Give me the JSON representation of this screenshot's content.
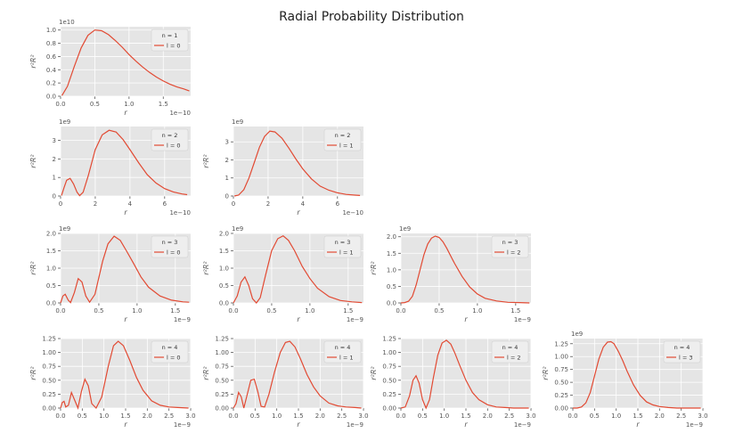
{
  "figure": {
    "title": "Radial Probability Distribution"
  },
  "colors": {
    "axes_bg": "#e5e5e5",
    "grid": "#ffffff",
    "line": "#e24a33",
    "text": "#555555",
    "legend_bg": "#eeeeee"
  },
  "chart_data": [
    {
      "type": "line",
      "n": 1,
      "l": 0,
      "legend": [
        "n = 1",
        "l = 0"
      ],
      "xlabel": "r",
      "ylabel": "r²R²",
      "x_offset_text": "1e−10",
      "y_offset_text": "1e10",
      "xlim": [
        0,
        1.9
      ],
      "ylim": [
        0,
        1.05
      ],
      "xticks": [
        0,
        0.5,
        1.0,
        1.5
      ],
      "xtick_labels": [
        "0.0",
        "0.5",
        "1.0",
        "1.5"
      ],
      "yticks": [
        0,
        0.2,
        0.4,
        0.6,
        0.8,
        1.0
      ],
      "ytick_labels": [
        "0.0",
        "0.2",
        "0.4",
        "0.6",
        "0.8",
        "1.0"
      ],
      "x": [
        0.02,
        0.1,
        0.2,
        0.3,
        0.4,
        0.5,
        0.6,
        0.7,
        0.8,
        0.9,
        1.0,
        1.1,
        1.2,
        1.3,
        1.4,
        1.5,
        1.6,
        1.7,
        1.8,
        1.88
      ],
      "y": [
        0.01,
        0.15,
        0.45,
        0.73,
        0.92,
        1.0,
        0.99,
        0.93,
        0.84,
        0.74,
        0.63,
        0.53,
        0.44,
        0.36,
        0.29,
        0.23,
        0.18,
        0.14,
        0.11,
        0.08
      ]
    },
    {
      "type": "line",
      "n": 2,
      "l": 0,
      "legend": [
        "n = 2",
        "l = 0"
      ],
      "xlabel": "r",
      "ylabel": "r²R²",
      "x_offset_text": "1e−10",
      "y_offset_text": "1e9",
      "xlim": [
        0,
        7.5
      ],
      "ylim": [
        0,
        3.75
      ],
      "xticks": [
        0,
        2,
        4,
        6
      ],
      "xtick_labels": [
        "0",
        "2",
        "4",
        "6"
      ],
      "yticks": [
        0,
        1,
        2,
        3
      ],
      "ytick_labels": [
        "0",
        "1",
        "2",
        "3"
      ],
      "x": [
        0.05,
        0.2,
        0.35,
        0.55,
        0.75,
        0.95,
        1.1,
        1.3,
        1.6,
        2.0,
        2.4,
        2.8,
        3.2,
        3.6,
        4.0,
        4.5,
        5.0,
        5.5,
        6.0,
        6.5,
        7.0,
        7.3
      ],
      "y": [
        0.02,
        0.45,
        0.85,
        0.95,
        0.65,
        0.2,
        0.02,
        0.2,
        1.1,
        2.5,
        3.3,
        3.55,
        3.45,
        3.05,
        2.5,
        1.8,
        1.15,
        0.7,
        0.4,
        0.22,
        0.11,
        0.07
      ]
    },
    {
      "type": "line",
      "n": 2,
      "l": 1,
      "legend": [
        "n = 2",
        "l = 1"
      ],
      "xlabel": "r",
      "ylabel": "r²R²",
      "x_offset_text": "1e−10",
      "y_offset_text": "1e9",
      "xlim": [
        0,
        7.5
      ],
      "ylim": [
        0,
        3.85
      ],
      "xticks": [
        0,
        2,
        4,
        6
      ],
      "xtick_labels": [
        "0",
        "2",
        "4",
        "6"
      ],
      "yticks": [
        0,
        1,
        2,
        3
      ],
      "ytick_labels": [
        "0",
        "1",
        "2",
        "3"
      ],
      "x": [
        0.05,
        0.3,
        0.6,
        0.9,
        1.2,
        1.5,
        1.8,
        2.1,
        2.4,
        2.8,
        3.2,
        3.6,
        4.0,
        4.5,
        5.0,
        5.5,
        6.0,
        6.5,
        7.0,
        7.3
      ],
      "y": [
        0.0,
        0.05,
        0.35,
        1.0,
        1.85,
        2.7,
        3.3,
        3.6,
        3.55,
        3.2,
        2.65,
        2.05,
        1.5,
        0.95,
        0.55,
        0.32,
        0.18,
        0.09,
        0.05,
        0.03
      ]
    },
    {
      "type": "line",
      "n": 3,
      "l": 0,
      "legend": [
        "n = 3",
        "l = 0"
      ],
      "xlabel": "r",
      "ylabel": "r²R²",
      "x_offset_text": "1e−9",
      "y_offset_text": "1e9",
      "xlim": [
        0,
        1.7
      ],
      "ylim": [
        0,
        2.0
      ],
      "xticks": [
        0,
        0.5,
        1.0,
        1.5
      ],
      "xtick_labels": [
        "0.0",
        "0.5",
        "1.0",
        "1.5"
      ],
      "yticks": [
        0,
        0.5,
        1.0,
        1.5,
        2.0
      ],
      "ytick_labels": [
        "0.0",
        "0.5",
        "1.0",
        "1.5",
        "2.0"
      ],
      "x": [
        0.0,
        0.03,
        0.06,
        0.1,
        0.13,
        0.18,
        0.23,
        0.28,
        0.33,
        0.38,
        0.45,
        0.55,
        0.62,
        0.7,
        0.78,
        0.86,
        0.95,
        1.05,
        1.15,
        1.3,
        1.45,
        1.6,
        1.68
      ],
      "y": [
        0.0,
        0.2,
        0.25,
        0.08,
        0.01,
        0.3,
        0.7,
        0.6,
        0.2,
        0.02,
        0.25,
        1.2,
        1.7,
        1.92,
        1.8,
        1.5,
        1.15,
        0.75,
        0.45,
        0.2,
        0.08,
        0.03,
        0.02
      ]
    },
    {
      "type": "line",
      "n": 3,
      "l": 1,
      "legend": [
        "n = 3",
        "l = 1"
      ],
      "xlabel": "r",
      "ylabel": "r²R²",
      "x_offset_text": "1e−9",
      "y_offset_text": "1e9",
      "xlim": [
        0,
        1.7
      ],
      "ylim": [
        0,
        2.0
      ],
      "xticks": [
        0,
        0.5,
        1.0,
        1.5
      ],
      "xtick_labels": [
        "0.0",
        "0.5",
        "1.0",
        "1.5"
      ],
      "yticks": [
        0,
        0.5,
        1.0,
        1.5,
        2.0
      ],
      "ytick_labels": [
        "0.0",
        "0.5",
        "1.0",
        "1.5",
        "2.0"
      ],
      "x": [
        0.0,
        0.05,
        0.1,
        0.15,
        0.2,
        0.25,
        0.3,
        0.35,
        0.42,
        0.5,
        0.58,
        0.65,
        0.72,
        0.8,
        0.9,
        1.0,
        1.1,
        1.25,
        1.4,
        1.55,
        1.68
      ],
      "y": [
        0.0,
        0.2,
        0.6,
        0.75,
        0.5,
        0.12,
        0.0,
        0.15,
        0.8,
        1.5,
        1.85,
        1.93,
        1.8,
        1.5,
        1.05,
        0.7,
        0.42,
        0.18,
        0.07,
        0.03,
        0.01
      ]
    },
    {
      "type": "line",
      "n": 3,
      "l": 2,
      "legend": [
        "n = 3",
        "l = 2"
      ],
      "xlabel": "r",
      "ylabel": "r²R²",
      "x_offset_text": "1e−9",
      "y_offset_text": "1e9",
      "xlim": [
        0,
        1.7
      ],
      "ylim": [
        0,
        2.1
      ],
      "xticks": [
        0,
        0.5,
        1.0,
        1.5
      ],
      "xtick_labels": [
        "0.0",
        "0.5",
        "1.0",
        "1.5"
      ],
      "yticks": [
        0,
        0.5,
        1.0,
        1.5,
        2.0
      ],
      "ytick_labels": [
        "0.0",
        "0.5",
        "1.0",
        "1.5",
        "2.0"
      ],
      "x": [
        0.0,
        0.05,
        0.1,
        0.15,
        0.2,
        0.25,
        0.3,
        0.35,
        0.4,
        0.45,
        0.5,
        0.55,
        0.6,
        0.7,
        0.8,
        0.9,
        1.0,
        1.1,
        1.25,
        1.4,
        1.55,
        1.68
      ],
      "y": [
        0.0,
        0.01,
        0.05,
        0.2,
        0.55,
        1.0,
        1.45,
        1.78,
        1.96,
        2.02,
        1.98,
        1.85,
        1.65,
        1.2,
        0.8,
        0.48,
        0.27,
        0.14,
        0.06,
        0.02,
        0.01,
        0.0
      ]
    },
    {
      "type": "line",
      "n": 4,
      "l": 0,
      "legend": [
        "n = 4",
        "l = 0"
      ],
      "xlabel": "r",
      "ylabel": "r²R²",
      "x_offset_text": "1e−9",
      "y_offset_text": "",
      "xlim": [
        0,
        3.0
      ],
      "ylim": [
        0,
        1.25
      ],
      "xticks": [
        0,
        0.5,
        1.0,
        1.5,
        2.0,
        2.5,
        3.0
      ],
      "xtick_labels": [
        "0.0",
        "0.5",
        "1.0",
        "1.5",
        "2.0",
        "2.5",
        "3.0"
      ],
      "yticks": [
        0,
        0.25,
        0.5,
        0.75,
        1.0,
        1.25
      ],
      "ytick_labels": [
        "0.00",
        "0.25",
        "0.50",
        "0.75",
        "1.00",
        "1.25"
      ],
      "x": [
        0.0,
        0.04,
        0.08,
        0.12,
        0.18,
        0.25,
        0.32,
        0.4,
        0.48,
        0.56,
        0.64,
        0.72,
        0.82,
        0.95,
        1.1,
        1.22,
        1.33,
        1.45,
        1.6,
        1.75,
        1.9,
        2.1,
        2.3,
        2.5,
        2.7,
        2.95
      ],
      "y": [
        0.0,
        0.1,
        0.12,
        0.02,
        0.05,
        0.28,
        0.15,
        0.0,
        0.3,
        0.52,
        0.4,
        0.08,
        0.0,
        0.2,
        0.75,
        1.12,
        1.2,
        1.12,
        0.85,
        0.55,
        0.32,
        0.13,
        0.05,
        0.02,
        0.01,
        0.0
      ]
    },
    {
      "type": "line",
      "n": 4,
      "l": 1,
      "legend": [
        "n = 4",
        "l = 1"
      ],
      "xlabel": "r",
      "ylabel": "r²R²",
      "x_offset_text": "1e−9",
      "y_offset_text": "",
      "xlim": [
        0,
        3.0
      ],
      "ylim": [
        0,
        1.25
      ],
      "xticks": [
        0,
        0.5,
        1.0,
        1.5,
        2.0,
        2.5,
        3.0
      ],
      "xtick_labels": [
        "0.0",
        "0.5",
        "1.0",
        "1.5",
        "2.0",
        "2.5",
        "3.0"
      ],
      "yticks": [
        0,
        0.25,
        0.5,
        0.75,
        1.0,
        1.25
      ],
      "ytick_labels": [
        "0.00",
        "0.25",
        "0.50",
        "0.75",
        "1.00",
        "1.25"
      ],
      "x": [
        0.0,
        0.06,
        0.12,
        0.18,
        0.24,
        0.32,
        0.4,
        0.48,
        0.56,
        0.64,
        0.72,
        0.82,
        0.95,
        1.08,
        1.2,
        1.3,
        1.42,
        1.55,
        1.7,
        1.85,
        2.0,
        2.2,
        2.4,
        2.6,
        2.8,
        2.95
      ],
      "y": [
        0.0,
        0.08,
        0.28,
        0.2,
        0.0,
        0.25,
        0.5,
        0.52,
        0.3,
        0.03,
        0.02,
        0.25,
        0.65,
        1.0,
        1.18,
        1.2,
        1.1,
        0.88,
        0.6,
        0.38,
        0.22,
        0.09,
        0.04,
        0.02,
        0.01,
        0.0
      ]
    },
    {
      "type": "line",
      "n": 4,
      "l": 2,
      "legend": [
        "n = 4",
        "l = 2"
      ],
      "xlabel": "r",
      "ylabel": "r²R²",
      "x_offset_text": "1e−9",
      "y_offset_text": "",
      "xlim": [
        0,
        3.0
      ],
      "ylim": [
        0,
        1.25
      ],
      "xticks": [
        0,
        0.5,
        1.0,
        1.5,
        2.0,
        2.5,
        3.0
      ],
      "xtick_labels": [
        "0.0",
        "0.5",
        "1.0",
        "1.5",
        "2.0",
        "2.5",
        "3.0"
      ],
      "yticks": [
        0,
        0.25,
        0.5,
        0.75,
        1.0,
        1.25
      ],
      "ytick_labels": [
        "0.00",
        "0.25",
        "0.50",
        "0.75",
        "1.00",
        "1.25"
      ],
      "x": [
        0.0,
        0.1,
        0.2,
        0.28,
        0.35,
        0.42,
        0.5,
        0.58,
        0.66,
        0.75,
        0.85,
        0.95,
        1.05,
        1.15,
        1.25,
        1.35,
        1.5,
        1.65,
        1.8,
        2.0,
        2.2,
        2.4,
        2.6,
        2.8,
        2.95
      ],
      "y": [
        0.0,
        0.02,
        0.22,
        0.5,
        0.58,
        0.45,
        0.15,
        0.0,
        0.15,
        0.55,
        0.95,
        1.17,
        1.22,
        1.15,
        0.98,
        0.78,
        0.5,
        0.28,
        0.15,
        0.06,
        0.02,
        0.01,
        0.0,
        0.0,
        0.0
      ]
    },
    {
      "type": "line",
      "n": 4,
      "l": 3,
      "legend": [
        "n = 4",
        "l = 3"
      ],
      "xlabel": "r",
      "ylabel": "r²R²",
      "x_offset_text": "1e−9",
      "y_offset_text": "1e9",
      "xlim": [
        0,
        3.0
      ],
      "ylim": [
        0,
        1.35
      ],
      "xticks": [
        0,
        0.5,
        1.0,
        1.5,
        2.0,
        2.5,
        3.0
      ],
      "xtick_labels": [
        "0.0",
        "0.5",
        "1.0",
        "1.5",
        "2.0",
        "2.5",
        "3.0"
      ],
      "yticks": [
        0,
        0.25,
        0.5,
        0.75,
        1.0,
        1.25
      ],
      "ytick_labels": [
        "0.00",
        "0.25",
        "0.50",
        "0.75",
        "1.00",
        "1.25"
      ],
      "x": [
        0.0,
        0.1,
        0.2,
        0.3,
        0.4,
        0.5,
        0.6,
        0.7,
        0.8,
        0.88,
        0.95,
        1.05,
        1.15,
        1.25,
        1.4,
        1.55,
        1.7,
        1.85,
        2.0,
        2.2,
        2.4,
        2.6,
        2.8,
        2.95
      ],
      "y": [
        0.0,
        0.0,
        0.02,
        0.1,
        0.3,
        0.62,
        0.95,
        1.18,
        1.28,
        1.29,
        1.25,
        1.1,
        0.92,
        0.72,
        0.45,
        0.25,
        0.12,
        0.06,
        0.03,
        0.01,
        0.0,
        0.0,
        0.0,
        0.0
      ]
    }
  ]
}
